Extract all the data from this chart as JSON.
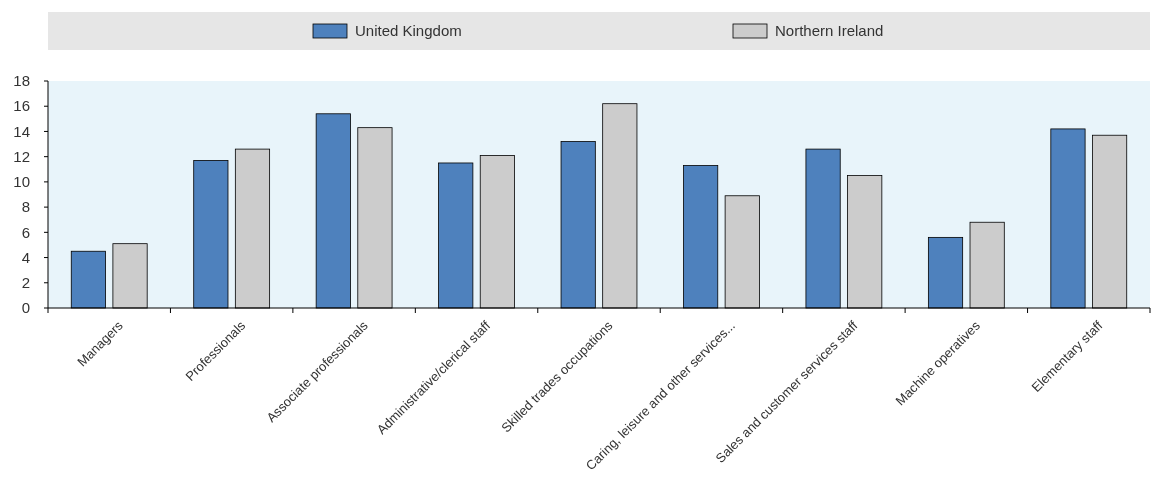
{
  "chart_data": {
    "type": "bar",
    "categories": [
      "Managers",
      "Professionals",
      "Associate professionals",
      "Administrative/clerical staff",
      "Skilled trades occupations",
      "Caring, leisure and other services...",
      "Sales and customer services staff",
      "Machine operatives",
      "Elementary staff"
    ],
    "series": [
      {
        "name": "United Kingdom",
        "color": "#4e81bd",
        "values": [
          4.5,
          11.7,
          15.4,
          11.5,
          13.2,
          11.3,
          12.6,
          5.6,
          14.2
        ]
      },
      {
        "name": "Northern Ireland",
        "color": "#cccccc",
        "values": [
          5.1,
          12.6,
          14.3,
          12.1,
          16.2,
          8.9,
          10.5,
          6.8,
          13.7
        ]
      }
    ],
    "ylim": [
      0,
      18
    ],
    "yticks": [
      0,
      2,
      4,
      6,
      8,
      10,
      12,
      14,
      16,
      18
    ],
    "legend": "top"
  }
}
